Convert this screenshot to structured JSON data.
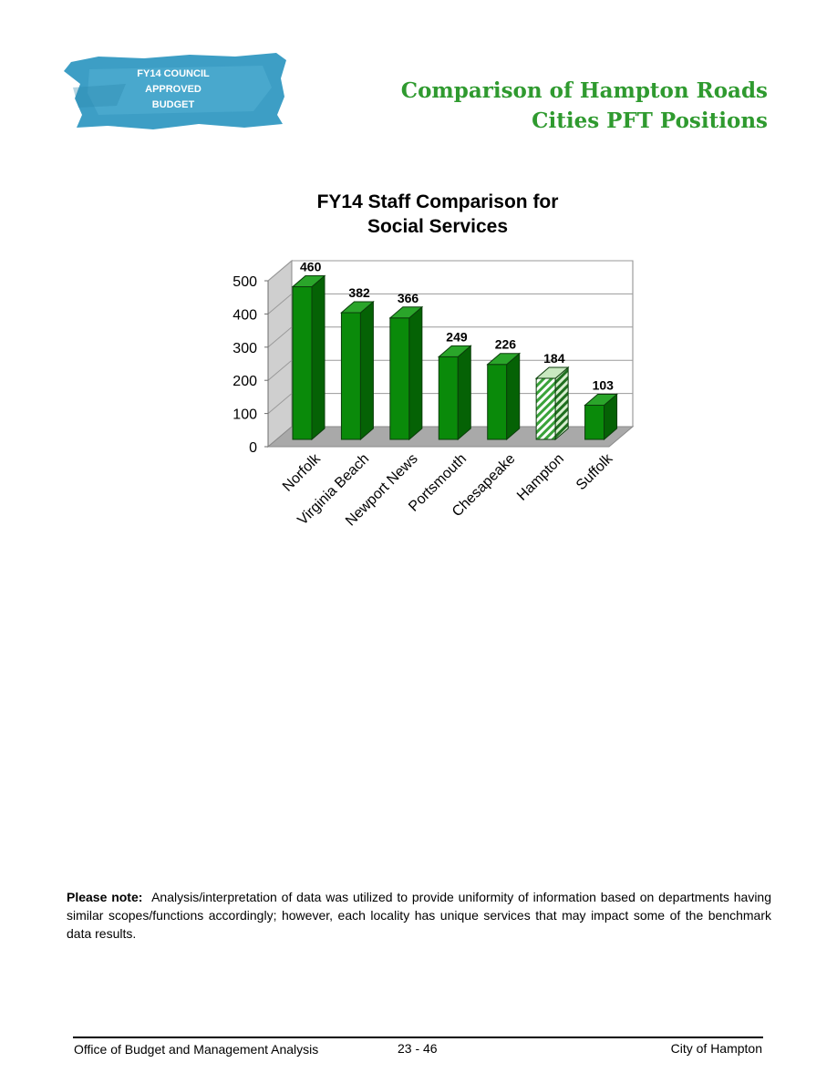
{
  "badge": {
    "lines": [
      "FY14 COUNCIL",
      "APPROVED",
      "BUDGET"
    ],
    "color": "#3d9ec5"
  },
  "header": {
    "line1": "Comparison of Hampton Roads",
    "line2": "Cities PFT Positions",
    "color": "#2f9a2f"
  },
  "chart_data": {
    "type": "bar",
    "title_lines": [
      "FY14  Staff Comparison for",
      "Social Services"
    ],
    "categories": [
      "Norfolk",
      "Virginia Beach",
      "Newport News",
      "Portsmouth",
      "Chesapeake",
      "Hampton",
      "Suffolk"
    ],
    "values": [
      460,
      382,
      366,
      249,
      226,
      184,
      103
    ],
    "data_labels": [
      "460",
      "382",
      "366",
      "249",
      "226",
      "184",
      "103"
    ],
    "highlight": "Hampton",
    "yticks": [
      "0",
      "100",
      "200",
      "300",
      "400",
      "500"
    ],
    "ylim": [
      0,
      500
    ],
    "grid": true,
    "legend": "none",
    "style": "3d",
    "colors": {
      "bar": "#0a8a0a",
      "highlight": "#c8e8c0"
    }
  },
  "note": {
    "label": "Please note:",
    "text": "Analysis/interpretation of data was utilized to provide uniformity of information based on departments having similar scopes/functions accordingly; however, each locality has unique services that may impact some of the benchmark data results."
  },
  "footer": {
    "left": "Office of Budget and Management Analysis",
    "center": "23 - 46",
    "right": "City of Hampton"
  }
}
